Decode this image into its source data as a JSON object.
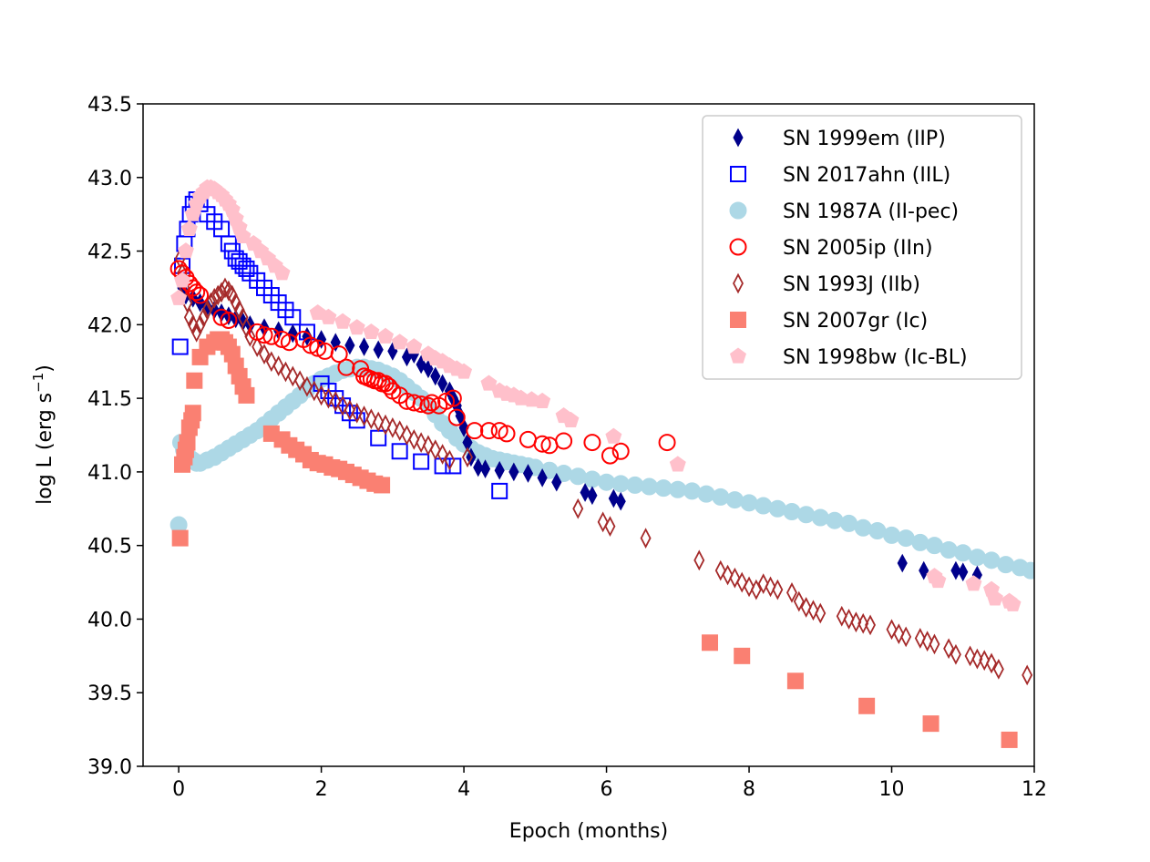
{
  "chart_data": {
    "type": "scatter",
    "title": "",
    "xlabel": "Epoch (months)",
    "ylabel_main": "log L (erg s",
    "ylabel_sup": "−1",
    "ylabel_close": ")",
    "xlim": [
      -0.5,
      12
    ],
    "ylim": [
      39.0,
      43.5
    ],
    "xticks": [
      0,
      2,
      4,
      6,
      8,
      10,
      12
    ],
    "xtick_labels": [
      "0",
      "2",
      "4",
      "6",
      "8",
      "10",
      "12"
    ],
    "yticks": [
      39.0,
      39.5,
      40.0,
      40.5,
      41.0,
      41.5,
      42.0,
      42.5,
      43.0,
      43.5
    ],
    "ytick_labels": [
      "39.0",
      "39.5",
      "40.0",
      "40.5",
      "41.0",
      "41.5",
      "42.0",
      "42.5",
      "43.0",
      "43.5"
    ],
    "grid": false,
    "legend_position": "top-right",
    "series": [
      {
        "name": "SN 1987A (II-pec)",
        "marker": "circle-filled",
        "color": "#add8e6",
        "x": [
          0.0,
          0.03,
          0.07,
          0.1,
          0.13,
          0.17,
          0.2,
          0.25,
          0.3,
          0.4,
          0.5,
          0.6,
          0.7,
          0.8,
          0.9,
          1.0,
          1.1,
          1.2,
          1.3,
          1.4,
          1.5,
          1.6,
          1.7,
          1.8,
          1.9,
          2.0,
          2.1,
          2.2,
          2.3,
          2.4,
          2.5,
          2.6,
          2.7,
          2.8,
          2.9,
          3.0,
          3.1,
          3.2,
          3.3,
          3.4,
          3.5,
          3.6,
          3.7,
          3.8,
          3.9,
          4.0,
          4.1,
          4.2,
          4.3,
          4.4,
          4.5,
          4.6,
          4.7,
          4.8,
          4.9,
          5.0,
          5.2,
          5.4,
          5.6,
          5.8,
          6.0,
          6.2,
          6.4,
          6.6,
          6.8,
          7.0,
          7.2,
          7.4,
          7.6,
          7.8,
          8.0,
          8.2,
          8.4,
          8.6,
          8.8,
          9.0,
          9.2,
          9.4,
          9.6,
          9.8,
          10.0,
          10.2,
          10.4,
          10.6,
          10.8,
          11.0,
          11.2,
          11.4,
          11.6,
          11.8,
          11.95
        ],
        "y": [
          40.64,
          41.2,
          41.15,
          41.12,
          41.1,
          41.09,
          41.08,
          41.06,
          41.06,
          41.08,
          41.1,
          41.13,
          41.16,
          41.19,
          41.22,
          41.25,
          41.28,
          41.32,
          41.36,
          41.4,
          41.44,
          41.48,
          41.52,
          41.56,
          41.6,
          41.63,
          41.65,
          41.67,
          41.69,
          41.7,
          41.71,
          41.71,
          41.7,
          41.69,
          41.67,
          41.65,
          41.62,
          41.58,
          41.54,
          41.5,
          41.45,
          41.39,
          41.33,
          41.28,
          41.23,
          41.19,
          41.16,
          41.13,
          41.11,
          41.09,
          41.08,
          41.07,
          41.06,
          41.05,
          41.04,
          41.03,
          41.01,
          40.99,
          40.97,
          40.95,
          40.93,
          40.92,
          40.91,
          40.9,
          40.89,
          40.88,
          40.87,
          40.85,
          40.83,
          40.81,
          40.79,
          40.77,
          40.75,
          40.73,
          40.71,
          40.69,
          40.67,
          40.65,
          40.62,
          40.6,
          40.57,
          40.55,
          40.52,
          40.5,
          40.47,
          40.45,
          40.42,
          40.4,
          40.37,
          40.35,
          40.33
        ]
      },
      {
        "name": "SN 2007gr (Ic)",
        "marker": "square-filled",
        "color": "#fa8072",
        "x": [
          0.02,
          0.05,
          0.08,
          0.1,
          0.12,
          0.15,
          0.18,
          0.2,
          0.22,
          0.3,
          0.4,
          0.5,
          0.55,
          0.6,
          0.65,
          0.7,
          0.75,
          0.8,
          0.85,
          0.9,
          0.95,
          1.3,
          1.45,
          1.55,
          1.65,
          1.75,
          1.85,
          1.95,
          2.05,
          2.15,
          2.25,
          2.35,
          2.45,
          2.55,
          2.65,
          2.75,
          2.85,
          7.45,
          7.9,
          8.65,
          9.65,
          10.55,
          11.65
        ],
        "y": [
          40.55,
          41.05,
          41.1,
          41.15,
          41.2,
          41.3,
          41.35,
          41.4,
          41.62,
          41.78,
          41.85,
          41.88,
          41.9,
          41.9,
          41.88,
          41.85,
          41.8,
          41.72,
          41.65,
          41.58,
          41.52,
          41.26,
          41.22,
          41.18,
          41.15,
          41.12,
          41.08,
          41.06,
          41.05,
          41.03,
          41.02,
          41.0,
          40.98,
          40.96,
          40.94,
          40.92,
          40.91,
          39.84,
          39.75,
          39.58,
          39.41,
          39.29,
          39.18
        ]
      },
      {
        "name": "SN 2017ahn (IIL)",
        "marker": "square-open",
        "color": "#0000ff",
        "x": [
          0.02,
          0.05,
          0.08,
          0.12,
          0.16,
          0.2,
          0.25,
          0.3,
          0.4,
          0.5,
          0.6,
          0.7,
          0.75,
          0.8,
          0.85,
          0.9,
          0.95,
          1.0,
          1.1,
          1.2,
          1.3,
          1.4,
          1.5,
          1.6,
          1.8,
          2.0,
          2.1,
          2.2,
          2.3,
          2.4,
          2.5,
          2.8,
          3.1,
          3.4,
          3.7,
          3.85,
          4.5
        ],
        "y": [
          41.85,
          42.4,
          42.55,
          42.65,
          42.75,
          42.82,
          42.85,
          42.82,
          42.75,
          42.7,
          42.65,
          42.55,
          42.5,
          42.45,
          42.43,
          42.4,
          42.38,
          42.35,
          42.3,
          42.25,
          42.2,
          42.15,
          42.1,
          42.05,
          41.95,
          41.6,
          41.55,
          41.5,
          41.45,
          41.4,
          41.35,
          41.23,
          41.14,
          41.07,
          41.04,
          41.04,
          40.87
        ]
      },
      {
        "name": "SN 1999em (IIP)",
        "marker": "diamond-filled",
        "color": "#00008b",
        "x": [
          0.05,
          0.1,
          0.2,
          0.3,
          0.4,
          0.5,
          0.6,
          0.7,
          0.8,
          0.9,
          1.0,
          1.2,
          1.4,
          1.6,
          1.8,
          2.0,
          2.2,
          2.4,
          2.6,
          2.8,
          3.0,
          3.2,
          3.3,
          3.4,
          3.5,
          3.6,
          3.7,
          3.8,
          3.85,
          3.9,
          3.95,
          4.0,
          4.05,
          4.1,
          4.2,
          4.3,
          4.5,
          4.7,
          4.9,
          5.1,
          5.3,
          5.7,
          5.8,
          6.1,
          6.2,
          10.15,
          10.45,
          10.9,
          11.0,
          11.2
        ],
        "y": [
          42.25,
          42.2,
          42.18,
          42.15,
          42.12,
          42.1,
          42.08,
          42.06,
          42.04,
          42.02,
          42.0,
          41.98,
          41.96,
          41.94,
          41.92,
          41.9,
          41.88,
          41.86,
          41.85,
          41.83,
          41.82,
          41.78,
          41.8,
          41.73,
          41.7,
          41.65,
          41.6,
          41.55,
          41.5,
          41.45,
          41.38,
          41.3,
          41.2,
          41.1,
          41.03,
          41.02,
          41.01,
          41.0,
          40.99,
          40.96,
          40.93,
          40.86,
          40.84,
          40.82,
          40.8,
          40.38,
          40.33,
          40.33,
          40.32,
          40.3
        ]
      },
      {
        "name": "SN 1993J (IIb)",
        "marker": "diamond-open",
        "color": "#a52a2a",
        "x": [
          0.02,
          0.05,
          0.08,
          0.12,
          0.15,
          0.2,
          0.25,
          0.3,
          0.35,
          0.4,
          0.45,
          0.5,
          0.55,
          0.6,
          0.65,
          0.7,
          0.75,
          0.8,
          0.85,
          0.9,
          0.95,
          1.0,
          1.1,
          1.2,
          1.3,
          1.4,
          1.5,
          1.6,
          1.7,
          1.8,
          1.9,
          2.0,
          2.1,
          2.2,
          2.3,
          2.4,
          2.5,
          2.6,
          2.7,
          2.8,
          2.9,
          3.0,
          3.1,
          3.2,
          3.3,
          3.4,
          3.5,
          3.6,
          3.7,
          3.8,
          4.05,
          5.6,
          5.95,
          6.05,
          6.55,
          7.3,
          7.6,
          7.7,
          7.8,
          7.9,
          8.0,
          8.1,
          8.2,
          8.3,
          8.4,
          8.6,
          8.7,
          8.8,
          8.9,
          9.0,
          9.3,
          9.4,
          9.5,
          9.6,
          9.7,
          10.0,
          10.1,
          10.2,
          10.4,
          10.5,
          10.6,
          10.8,
          10.9,
          11.1,
          11.2,
          11.3,
          11.4,
          11.5,
          11.9
        ],
        "y": [
          42.45,
          42.35,
          42.25,
          42.15,
          42.05,
          42.0,
          41.95,
          42.0,
          42.05,
          42.1,
          42.15,
          42.18,
          42.2,
          42.22,
          42.25,
          42.23,
          42.2,
          42.15,
          42.1,
          42.05,
          41.98,
          41.92,
          41.85,
          41.8,
          41.75,
          41.72,
          41.68,
          41.65,
          41.62,
          41.58,
          41.55,
          41.52,
          41.5,
          41.48,
          41.45,
          41.42,
          41.4,
          41.38,
          41.36,
          41.34,
          41.32,
          41.3,
          41.28,
          41.25,
          41.22,
          41.2,
          41.18,
          41.15,
          41.12,
          41.08,
          41.1,
          40.75,
          40.66,
          40.63,
          40.55,
          40.4,
          40.33,
          40.3,
          40.28,
          40.25,
          40.22,
          40.2,
          40.24,
          40.22,
          40.2,
          40.18,
          40.12,
          40.08,
          40.06,
          40.04,
          40.02,
          40.0,
          39.98,
          39.97,
          39.96,
          39.93,
          39.9,
          39.88,
          39.87,
          39.85,
          39.83,
          39.8,
          39.76,
          39.75,
          39.73,
          39.72,
          39.7,
          39.66,
          39.62
        ]
      },
      {
        "name": "SN 2005ip (IIn)",
        "marker": "circle-open",
        "color": "#ff0000",
        "x": [
          0.0,
          0.05,
          0.1,
          0.15,
          0.2,
          0.25,
          0.3,
          0.6,
          0.7,
          1.1,
          1.2,
          1.3,
          1.45,
          1.55,
          1.75,
          1.85,
          1.95,
          2.05,
          2.25,
          2.35,
          2.55,
          2.6,
          2.65,
          2.7,
          2.75,
          2.8,
          2.85,
          2.9,
          2.95,
          3.0,
          3.1,
          3.2,
          3.3,
          3.4,
          3.5,
          3.55,
          3.65,
          3.75,
          3.85,
          3.9,
          4.15,
          4.35,
          4.5,
          4.6,
          4.9,
          5.1,
          5.2,
          5.4,
          5.8,
          6.05,
          6.2,
          6.85
        ],
        "y": [
          42.38,
          42.35,
          42.32,
          42.28,
          42.25,
          42.22,
          42.2,
          42.05,
          42.03,
          41.95,
          41.93,
          41.92,
          41.9,
          41.88,
          41.9,
          41.86,
          41.84,
          41.82,
          41.8,
          41.71,
          41.7,
          41.65,
          41.64,
          41.63,
          41.62,
          41.62,
          41.6,
          41.6,
          41.58,
          41.55,
          41.52,
          41.48,
          41.47,
          41.46,
          41.45,
          41.47,
          41.45,
          41.48,
          41.5,
          41.37,
          41.28,
          41.28,
          41.28,
          41.26,
          41.22,
          41.19,
          41.18,
          41.21,
          41.2,
          41.11,
          41.14,
          41.2
        ]
      },
      {
        "name": "SN 1998bw (Ic-BL)",
        "marker": "pentagon-filled",
        "color": "#ffc0cb",
        "x": [
          0.0,
          0.05,
          0.1,
          0.15,
          0.2,
          0.25,
          0.3,
          0.35,
          0.4,
          0.45,
          0.5,
          0.55,
          0.6,
          0.65,
          0.7,
          0.75,
          0.8,
          0.85,
          0.9,
          1.05,
          1.15,
          1.25,
          1.35,
          1.45,
          1.95,
          2.1,
          2.3,
          2.5,
          2.7,
          2.9,
          3.1,
          3.3,
          3.5,
          3.6,
          3.7,
          3.8,
          3.9,
          4.0,
          4.35,
          4.5,
          4.6,
          4.7,
          4.8,
          4.95,
          5.1,
          5.4,
          5.5,
          6.1,
          7.0,
          10.6,
          10.65,
          11.15,
          11.4,
          11.45,
          11.65,
          11.7
        ],
        "y": [
          42.18,
          42.3,
          42.5,
          42.65,
          42.75,
          42.82,
          42.87,
          42.9,
          42.93,
          42.93,
          42.92,
          42.9,
          42.88,
          42.85,
          42.82,
          42.78,
          42.72,
          42.66,
          42.6,
          42.55,
          42.5,
          42.45,
          42.4,
          42.35,
          42.08,
          42.05,
          42.02,
          41.98,
          41.95,
          41.92,
          41.88,
          41.85,
          41.8,
          41.77,
          41.75,
          41.72,
          41.7,
          41.68,
          41.6,
          41.55,
          41.53,
          41.52,
          41.5,
          41.49,
          41.48,
          41.38,
          41.35,
          41.24,
          41.05,
          40.29,
          40.26,
          40.24,
          40.2,
          40.14,
          40.12,
          40.1
        ]
      }
    ],
    "legend": [
      {
        "label": "SN 1999em (IIP)",
        "marker": "diamond-filled",
        "color": "#00008b"
      },
      {
        "label": "SN 2017ahn (IIL)",
        "marker": "square-open",
        "color": "#0000ff"
      },
      {
        "label": "SN 1987A (II-pec)",
        "marker": "circle-filled",
        "color": "#add8e6"
      },
      {
        "label": "SN 2005ip (IIn)",
        "marker": "circle-open",
        "color": "#ff0000"
      },
      {
        "label": "SN 1993J (IIb)",
        "marker": "diamond-open",
        "color": "#a52a2a"
      },
      {
        "label": "SN 2007gr (Ic)",
        "marker": "square-filled",
        "color": "#fa8072"
      },
      {
        "label": "SN 1998bw (Ic-BL)",
        "marker": "pentagon-filled",
        "color": "#ffc0cb"
      }
    ]
  }
}
